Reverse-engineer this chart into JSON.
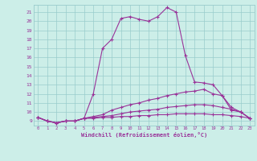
{
  "xlabel": "Windchill (Refroidissement éolien,°C)",
  "xlim": [
    -0.5,
    23.5
  ],
  "ylim": [
    8.5,
    21.8
  ],
  "yticks": [
    9,
    10,
    11,
    12,
    13,
    14,
    15,
    16,
    17,
    18,
    19,
    20,
    21
  ],
  "xticks": [
    0,
    1,
    2,
    3,
    4,
    5,
    6,
    7,
    8,
    9,
    10,
    11,
    12,
    13,
    14,
    15,
    16,
    17,
    18,
    19,
    20,
    21,
    22,
    23
  ],
  "bg_color": "#cceee8",
  "grid_color": "#99cccc",
  "line_color": "#993399",
  "curves": [
    [
      9.4,
      9.0,
      8.8,
      9.0,
      9.0,
      9.3,
      12.0,
      17.0,
      18.0,
      20.3,
      20.5,
      20.2,
      20.0,
      20.5,
      21.5,
      21.0,
      16.2,
      13.3,
      13.2,
      13.0,
      11.8,
      10.2,
      10.0,
      9.3
    ],
    [
      9.4,
      9.0,
      8.8,
      9.0,
      9.0,
      9.3,
      9.5,
      9.7,
      10.2,
      10.5,
      10.8,
      11.0,
      11.3,
      11.5,
      11.8,
      12.0,
      12.2,
      12.3,
      12.5,
      12.0,
      11.8,
      10.5,
      10.0,
      9.3
    ],
    [
      9.4,
      9.0,
      8.8,
      9.0,
      9.0,
      9.3,
      9.4,
      9.5,
      9.6,
      9.8,
      10.0,
      10.1,
      10.2,
      10.3,
      10.5,
      10.6,
      10.7,
      10.8,
      10.8,
      10.7,
      10.5,
      10.3,
      10.0,
      9.3
    ],
    [
      9.4,
      9.0,
      8.8,
      9.0,
      9.0,
      9.3,
      9.3,
      9.4,
      9.4,
      9.5,
      9.5,
      9.6,
      9.6,
      9.7,
      9.7,
      9.8,
      9.8,
      9.8,
      9.8,
      9.7,
      9.7,
      9.6,
      9.5,
      9.3
    ]
  ]
}
